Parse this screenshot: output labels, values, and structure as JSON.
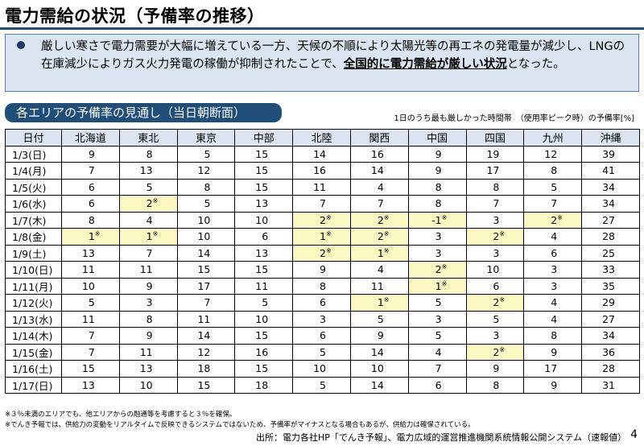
{
  "title": "電力需給の状況（予備率の推移）",
  "callout": {
    "text_before": "厳しい寒さで電力需要が大幅に増えている一方、天候の不順により太陽光等の再エネの発電量が減少し、LNGの在庫減少によりガス火力発電の稼働が抑制されたことで、",
    "highlight": "全国的に電力需給が厳しい状況",
    "text_after": "となった。"
  },
  "section_label": "各エリアの予備率の見通し（当日朝断面）",
  "unit_note": "1日のうち最も厳しかった時間帯　（使用率ピーク時）の予備率[%]",
  "columns": [
    "日付",
    "北海道",
    "東北",
    "東京",
    "中部",
    "北陸",
    "関西",
    "中国",
    "四国",
    "九州",
    "沖縄"
  ],
  "rows": [
    {
      "date": "1/3(日)",
      "values": [
        "9",
        "8",
        "5",
        "15",
        "14",
        "16",
        "9",
        "19",
        "12",
        "39"
      ],
      "mark": [
        0,
        0,
        0,
        0,
        0,
        0,
        0,
        0,
        0,
        0
      ]
    },
    {
      "date": "1/4(月)",
      "values": [
        "7",
        "13",
        "12",
        "15",
        "16",
        "14",
        "9",
        "17",
        "8",
        "41"
      ],
      "mark": [
        0,
        0,
        0,
        0,
        0,
        0,
        0,
        0,
        0,
        0
      ]
    },
    {
      "date": "1/5(火)",
      "values": [
        "6",
        "5",
        "8",
        "15",
        "11",
        "4",
        "8",
        "8",
        "5",
        "34"
      ],
      "mark": [
        0,
        0,
        0,
        0,
        0,
        0,
        0,
        0,
        0,
        0
      ]
    },
    {
      "date": "1/6(水)",
      "values": [
        "6",
        "2",
        "5",
        "13",
        "7",
        "7",
        "8",
        "7",
        "7",
        "34"
      ],
      "mark": [
        0,
        1,
        0,
        0,
        0,
        0,
        0,
        0,
        0,
        0
      ]
    },
    {
      "date": "1/7(木)",
      "values": [
        "8",
        "4",
        "10",
        "10",
        "2",
        "2",
        "-1",
        "3",
        "2",
        "27"
      ],
      "mark": [
        0,
        0,
        0,
        0,
        1,
        1,
        1,
        0,
        1,
        0
      ]
    },
    {
      "date": "1/8(金)",
      "values": [
        "1",
        "1",
        "10",
        "6",
        "1",
        "2",
        "3",
        "2",
        "4",
        "28"
      ],
      "mark": [
        1,
        1,
        0,
        0,
        1,
        1,
        0,
        1,
        0,
        0
      ]
    },
    {
      "date": "1/9(土)",
      "values": [
        "13",
        "7",
        "14",
        "13",
        "2",
        "1",
        "3",
        "3",
        "6",
        "25"
      ],
      "mark": [
        0,
        0,
        0,
        0,
        1,
        1,
        0,
        0,
        0,
        0
      ]
    },
    {
      "date": "1/10(日)",
      "values": [
        "11",
        "11",
        "15",
        "15",
        "9",
        "4",
        "2",
        "10",
        "3",
        "33"
      ],
      "mark": [
        0,
        0,
        0,
        0,
        0,
        0,
        1,
        0,
        0,
        0
      ]
    },
    {
      "date": "1/11(月)",
      "values": [
        "10",
        "9",
        "17",
        "11",
        "8",
        "11",
        "1",
        "6",
        "3",
        "35"
      ],
      "mark": [
        0,
        0,
        0,
        0,
        0,
        0,
        1,
        0,
        0,
        0
      ]
    },
    {
      "date": "1/12(火)",
      "values": [
        "5",
        "3",
        "7",
        "5",
        "6",
        "1",
        "5",
        "2",
        "4",
        "29"
      ],
      "mark": [
        0,
        0,
        0,
        0,
        0,
        1,
        0,
        1,
        0,
        0
      ]
    },
    {
      "date": "1/13(水)",
      "values": [
        "11",
        "8",
        "11",
        "10",
        "3",
        "5",
        "3",
        "5",
        "4",
        "27"
      ],
      "mark": [
        0,
        0,
        0,
        0,
        0,
        0,
        0,
        0,
        0,
        0
      ]
    },
    {
      "date": "1/14(木)",
      "values": [
        "7",
        "9",
        "14",
        "15",
        "6",
        "9",
        "5",
        "3",
        "8",
        "34"
      ],
      "mark": [
        0,
        0,
        0,
        0,
        0,
        0,
        0,
        0,
        0,
        0
      ]
    },
    {
      "date": "1/15(金)",
      "values": [
        "7",
        "11",
        "12",
        "16",
        "5",
        "14",
        "4",
        "2",
        "9",
        "36"
      ],
      "mark": [
        0,
        0,
        0,
        0,
        0,
        0,
        0,
        1,
        0,
        0
      ]
    },
    {
      "date": "1/16(土)",
      "values": [
        "15",
        "13",
        "18",
        "15",
        "10",
        "10",
        "7",
        "9",
        "17",
        "28"
      ],
      "mark": [
        0,
        0,
        0,
        0,
        0,
        0,
        0,
        0,
        0,
        0
      ]
    },
    {
      "date": "1/17(日)",
      "values": [
        "13",
        "10",
        "15",
        "18",
        "5",
        "14",
        "6",
        "8",
        "9",
        "31"
      ],
      "mark": [
        0,
        0,
        0,
        0,
        0,
        0,
        0,
        0,
        0,
        0
      ]
    }
  ],
  "mark_symbol": "※",
  "highlight_color": "#fbf8c2",
  "header_color": "#dbe5f1",
  "accent_color": "#1f4e79",
  "footnotes": [
    "※３％未満のエリアでも、他エリアからの融通等を考慮すると３％を確保。",
    "※でんき予報では、供給力の変動をリアルタイムで反映できるシステムではないため、予備率がマイナスとなる場合もあるが、供給力は確保されている。"
  ],
  "source": "出所：電力各社HP「でんき予報」、電力広域的運営推進機関系統情報公開システム（速報値）",
  "page_number": "4"
}
